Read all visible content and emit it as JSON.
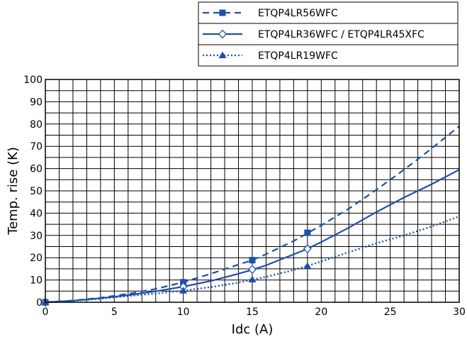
{
  "chart_data": {
    "type": "line",
    "title": "",
    "xlabel": "Idc (A)",
    "ylabel": "Temp. rise (K)",
    "xlim": [
      0,
      30
    ],
    "ylim": [
      0,
      100
    ],
    "x_ticks": [
      0,
      5,
      10,
      15,
      20,
      25,
      30
    ],
    "y_ticks": [
      0,
      10,
      20,
      30,
      40,
      50,
      60,
      70,
      80,
      90,
      100
    ],
    "grid": true,
    "grid_x_step": 1,
    "grid_y_step": 5,
    "legend_position": "top-right",
    "colors": {
      "series": "#1f4fa8",
      "grid": "#000000"
    },
    "series": [
      {
        "name": "ETQP4LR56WFC",
        "line_style": "dashed",
        "marker": "square-filled",
        "x": [
          0,
          2,
          4,
          6,
          8,
          10,
          12,
          14,
          15,
          16,
          18,
          19,
          20,
          22,
          24,
          26,
          28,
          30
        ],
        "y": [
          0,
          0.8,
          2.0,
          3.8,
          6.0,
          9.0,
          12.8,
          16.9,
          18.9,
          21.6,
          27.5,
          31.0,
          34.5,
          42.0,
          50.5,
          59.5,
          69.0,
          79.0
        ],
        "markers": [
          [
            0,
            0
          ],
          [
            10,
            9
          ],
          [
            15,
            18.9
          ],
          [
            19,
            31.2
          ]
        ]
      },
      {
        "name": "ETQP4LR36WFC / ETQP4LR45XFC",
        "line_style": "solid",
        "marker": "diamond-open",
        "x": [
          0,
          2,
          4,
          6,
          8,
          10,
          12,
          14,
          15,
          16,
          18,
          19,
          20,
          22,
          24,
          26,
          28,
          30
        ],
        "y": [
          0,
          0.7,
          1.8,
          3.2,
          4.9,
          7.0,
          9.6,
          12.8,
          14.6,
          16.6,
          21.5,
          24.0,
          27.0,
          33.5,
          40.5,
          47.0,
          53.0,
          59.5
        ],
        "markers": [
          [
            0,
            0
          ],
          [
            10,
            7
          ],
          [
            15,
            14.7
          ],
          [
            19,
            24
          ]
        ]
      },
      {
        "name": "ETQP4LR19WFC",
        "line_style": "dotted",
        "marker": "triangle-filled",
        "x": [
          0,
          2,
          4,
          6,
          8,
          10,
          12,
          14,
          15,
          16,
          18,
          19,
          20,
          22,
          24,
          26,
          28,
          30
        ],
        "y": [
          0,
          0.6,
          1.6,
          2.8,
          3.9,
          5.2,
          6.8,
          8.8,
          10.2,
          11.4,
          14.5,
          16.3,
          18.3,
          22.5,
          26.5,
          30.0,
          34.0,
          38.5
        ],
        "markers": [
          [
            0,
            0
          ],
          [
            10,
            5.2
          ],
          [
            15,
            10.2
          ],
          [
            19,
            16.3
          ]
        ]
      }
    ]
  }
}
